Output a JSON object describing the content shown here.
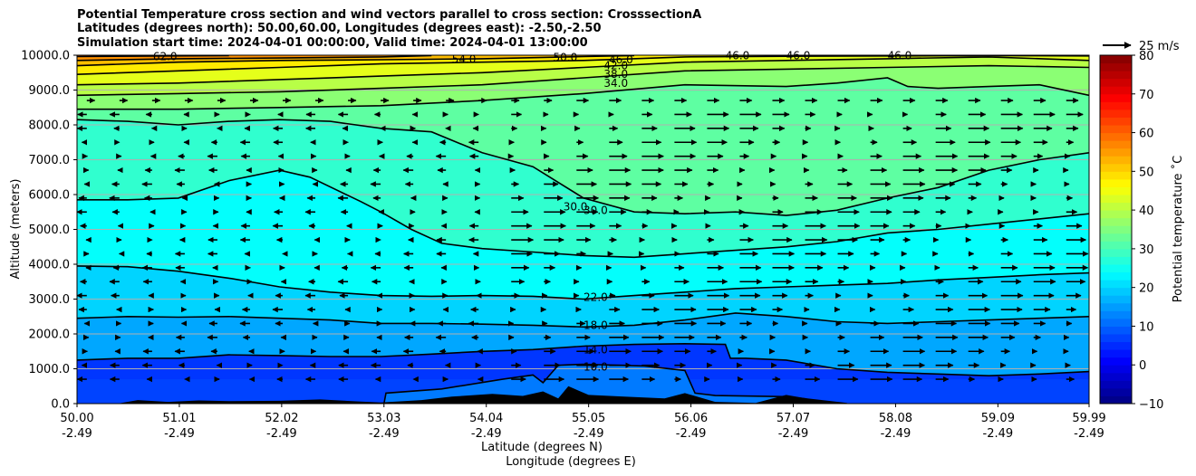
{
  "chart_data": {
    "type": "contour",
    "title_lines": [
      "Potential Temperature cross section and wind vectors parallel to cross section: CrosssectionA",
      "Latitudes (degrees north): 50.00,60.00, Longitudes (degrees east): -2.50,-2.50",
      "Simulation start time: 2024-04-01 00:00:00, Valid time: 2024-04-01 13:00:00"
    ],
    "ylabel": "Altitude (meters)",
    "xlabel": "Latitude (degrees N)",
    "xlabel2": "Longitude (degrees E)",
    "ylim": [
      0,
      10000
    ],
    "yticks": [
      "0.0",
      "1000.0",
      "2000.0",
      "3000.0",
      "4000.0",
      "5000.0",
      "6000.0",
      "7000.0",
      "8000.0",
      "9000.0",
      "10000.0"
    ],
    "xticks": [
      {
        "lat": "50.00",
        "lon": "-2.49"
      },
      {
        "lat": "51.01",
        "lon": "-2.49"
      },
      {
        "lat": "52.02",
        "lon": "-2.49"
      },
      {
        "lat": "53.03",
        "lon": "-2.49"
      },
      {
        "lat": "54.04",
        "lon": "-2.49"
      },
      {
        "lat": "55.05",
        "lon": "-2.49"
      },
      {
        "lat": "56.06",
        "lon": "-2.49"
      },
      {
        "lat": "57.07",
        "lon": "-2.49"
      },
      {
        "lat": "58.08",
        "lon": "-2.49"
      },
      {
        "lat": "59.09",
        "lon": "-2.49"
      },
      {
        "lat": "59.99",
        "lon": "-2.49"
      }
    ],
    "colorbar": {
      "label": "Potential temperature $^\\circ$C",
      "label_display": "Potential temperature ˚C",
      "range": [
        -10,
        80
      ],
      "ticks": [
        "−10",
        "0",
        "10",
        "20",
        "30",
        "40",
        "50",
        "60",
        "70",
        "80"
      ]
    },
    "quiver_key": "25 m/s",
    "grid": "horizontal",
    "contour_labels": [
      "62.0",
      "54.0",
      "50.0",
      "46.0",
      "46.0",
      "46.0",
      "46.0",
      "42.0",
      "38.0",
      "34.0",
      "30.0",
      "30.0",
      "22.0",
      "18.0",
      "14.0",
      "10.0"
    ],
    "contour_levels": [
      {
        "level": 10,
        "points": [
          [
            53.03,
            0
          ],
          [
            53.05,
            300
          ],
          [
            53.6,
            420
          ],
          [
            54.2,
            700
          ],
          [
            54.5,
            820
          ],
          [
            54.6,
            600
          ],
          [
            54.75,
            1100
          ],
          [
            55.0,
            1130
          ],
          [
            55.6,
            1080
          ],
          [
            56.0,
            950
          ],
          [
            56.1,
            300
          ],
          [
            56.3,
            230
          ],
          [
            57.0,
            200
          ],
          [
            57.6,
            0
          ]
        ]
      },
      {
        "level": 14,
        "points": [
          [
            50.0,
            1250
          ],
          [
            50.5,
            1300
          ],
          [
            51.0,
            1300
          ],
          [
            51.5,
            1400
          ],
          [
            52.0,
            1380
          ],
          [
            52.5,
            1350
          ],
          [
            53.0,
            1350
          ],
          [
            53.5,
            1420
          ],
          [
            54.0,
            1500
          ],
          [
            54.5,
            1550
          ],
          [
            55.0,
            1650
          ],
          [
            55.5,
            1700
          ],
          [
            56.0,
            1720
          ],
          [
            56.4,
            1700
          ],
          [
            56.45,
            1300
          ],
          [
            56.6,
            1300
          ],
          [
            57.0,
            1250
          ],
          [
            57.5,
            1000
          ],
          [
            58.0,
            900
          ],
          [
            58.5,
            850
          ],
          [
            59.0,
            800
          ],
          [
            59.5,
            850
          ],
          [
            59.99,
            920
          ]
        ]
      },
      {
        "level": 18,
        "points": [
          [
            50.0,
            2450
          ],
          [
            50.5,
            2500
          ],
          [
            51.0,
            2480
          ],
          [
            51.5,
            2500
          ],
          [
            52.0,
            2450
          ],
          [
            52.5,
            2400
          ],
          [
            53.0,
            2300
          ],
          [
            53.5,
            2300
          ],
          [
            54.0,
            2280
          ],
          [
            54.5,
            2250
          ],
          [
            55.0,
            2200
          ],
          [
            55.5,
            2250
          ],
          [
            56.0,
            2400
          ],
          [
            56.5,
            2600
          ],
          [
            57.0,
            2500
          ],
          [
            57.5,
            2350
          ],
          [
            58.0,
            2300
          ],
          [
            58.5,
            2350
          ],
          [
            59.0,
            2400
          ],
          [
            59.5,
            2450
          ],
          [
            59.99,
            2500
          ]
        ]
      },
      {
        "level": 22,
        "points": [
          [
            50.0,
            3950
          ],
          [
            50.5,
            3930
          ],
          [
            51.0,
            3800
          ],
          [
            51.5,
            3600
          ],
          [
            52.0,
            3350
          ],
          [
            52.5,
            3200
          ],
          [
            53.0,
            3100
          ],
          [
            53.5,
            3080
          ],
          [
            54.0,
            3100
          ],
          [
            54.5,
            3080
          ],
          [
            55.0,
            3000
          ],
          [
            55.5,
            3100
          ],
          [
            56.0,
            3200
          ],
          [
            56.5,
            3300
          ],
          [
            57.0,
            3350
          ],
          [
            57.5,
            3400
          ],
          [
            58.0,
            3450
          ],
          [
            58.5,
            3550
          ],
          [
            59.0,
            3620
          ],
          [
            59.5,
            3700
          ],
          [
            59.99,
            3750
          ]
        ]
      },
      {
        "level": 26,
        "points": [
          [
            50.0,
            5850
          ],
          [
            50.5,
            5850
          ],
          [
            51.0,
            5900
          ],
          [
            51.5,
            6400
          ],
          [
            52.0,
            6700
          ],
          [
            52.3,
            6500
          ],
          [
            52.8,
            5800
          ],
          [
            53.0,
            5500
          ],
          [
            53.3,
            5000
          ],
          [
            53.6,
            4600
          ],
          [
            54.0,
            4450
          ],
          [
            54.5,
            4350
          ],
          [
            55.0,
            4250
          ],
          [
            55.5,
            4200
          ],
          [
            56.0,
            4300
          ],
          [
            56.5,
            4400
          ],
          [
            57.0,
            4500
          ],
          [
            57.5,
            4650
          ],
          [
            58.0,
            4900
          ],
          [
            58.5,
            5000
          ],
          [
            59.0,
            5150
          ],
          [
            59.5,
            5300
          ],
          [
            59.99,
            5450
          ]
        ]
      },
      {
        "level": 30,
        "points": [
          [
            50.0,
            8150
          ],
          [
            50.5,
            8100
          ],
          [
            51.0,
            8000
          ],
          [
            51.5,
            8100
          ],
          [
            52.0,
            8150
          ],
          [
            52.5,
            8100
          ],
          [
            53.0,
            7900
          ],
          [
            53.5,
            7800
          ],
          [
            54.0,
            7200
          ],
          [
            54.5,
            6800
          ],
          [
            55.0,
            5900
          ],
          [
            55.5,
            5500
          ],
          [
            56.0,
            5450
          ],
          [
            56.5,
            5500
          ],
          [
            57.0,
            5400
          ],
          [
            57.5,
            5550
          ],
          [
            58.0,
            5900
          ],
          [
            58.5,
            6200
          ],
          [
            59.0,
            6700
          ],
          [
            59.5,
            7000
          ],
          [
            59.99,
            7200
          ]
        ]
      },
      {
        "level": 34,
        "points": [
          [
            50.0,
            8450
          ],
          [
            51.0,
            8450
          ],
          [
            52.0,
            8500
          ],
          [
            53.0,
            8550
          ],
          [
            54.0,
            8700
          ],
          [
            55.0,
            8900
          ],
          [
            56.0,
            9150
          ],
          [
            57.0,
            9100
          ],
          [
            57.5,
            9200
          ],
          [
            58.0,
            9350
          ],
          [
            58.2,
            9100
          ],
          [
            58.5,
            9050
          ],
          [
            59.0,
            9100
          ],
          [
            59.5,
            9150
          ],
          [
            59.99,
            8850
          ]
        ]
      },
      {
        "level": 38,
        "points": [
          [
            50.0,
            8850
          ],
          [
            51.0,
            8900
          ],
          [
            52.0,
            8950
          ],
          [
            53.0,
            9050
          ],
          [
            54.0,
            9150
          ],
          [
            55.0,
            9350
          ],
          [
            56.0,
            9550
          ],
          [
            57.0,
            9600
          ],
          [
            58.0,
            9650
          ],
          [
            59.0,
            9700
          ],
          [
            59.99,
            9650
          ]
        ]
      },
      {
        "level": 42,
        "points": [
          [
            50.0,
            9150
          ],
          [
            51.0,
            9200
          ],
          [
            52.0,
            9300
          ],
          [
            53.0,
            9400
          ],
          [
            54.0,
            9500
          ],
          [
            55.0,
            9650
          ],
          [
            56.0,
            9800
          ],
          [
            57.0,
            9850
          ],
          [
            58.0,
            9900
          ],
          [
            59.0,
            9950
          ],
          [
            59.99,
            9850
          ]
        ]
      },
      {
        "level": 46,
        "points": [
          [
            50.0,
            9450
          ],
          [
            51.0,
            9550
          ],
          [
            52.0,
            9650
          ],
          [
            53.0,
            9750
          ],
          [
            54.0,
            9800
          ],
          [
            55.0,
            9850
          ],
          [
            56.0,
            9950
          ],
          [
            57.0,
            9970
          ],
          [
            58.0,
            9980
          ],
          [
            59.0,
            9990
          ],
          [
            59.99,
            9980
          ]
        ]
      },
      {
        "level": 50,
        "points": [
          [
            50.0,
            9700
          ],
          [
            51.0,
            9800
          ],
          [
            52.0,
            9850
          ],
          [
            53.0,
            9870
          ],
          [
            54.0,
            9900
          ],
          [
            55.0,
            9960
          ],
          [
            55.5,
            9990
          ]
        ]
      },
      {
        "level": 54,
        "points": [
          [
            50.0,
            9850
          ],
          [
            51.0,
            9900
          ],
          [
            52.0,
            9920
          ],
          [
            53.0,
            9950
          ],
          [
            53.5,
            9990
          ]
        ]
      },
      {
        "level": 58,
        "points": [
          [
            50.0,
            9960
          ],
          [
            51.5,
            9990
          ]
        ]
      }
    ],
    "terrain_profile": [
      [
        50.0,
        0
      ],
      [
        50.4,
        0
      ],
      [
        50.6,
        100
      ],
      [
        50.9,
        50
      ],
      [
        51.2,
        90
      ],
      [
        51.5,
        70
      ],
      [
        52.0,
        80
      ],
      [
        52.4,
        120
      ],
      [
        52.8,
        60
      ],
      [
        53.0,
        30
      ],
      [
        53.4,
        100
      ],
      [
        53.7,
        200
      ],
      [
        54.1,
        280
      ],
      [
        54.4,
        220
      ],
      [
        54.6,
        350
      ],
      [
        54.75,
        150
      ],
      [
        54.85,
        500
      ],
      [
        55.05,
        250
      ],
      [
        55.4,
        200
      ],
      [
        55.8,
        150
      ],
      [
        56.0,
        300
      ],
      [
        56.3,
        50
      ],
      [
        56.7,
        20
      ],
      [
        57.0,
        250
      ],
      [
        57.2,
        150
      ],
      [
        57.4,
        50
      ],
      [
        57.6,
        0
      ],
      [
        59.99,
        0
      ]
    ]
  }
}
